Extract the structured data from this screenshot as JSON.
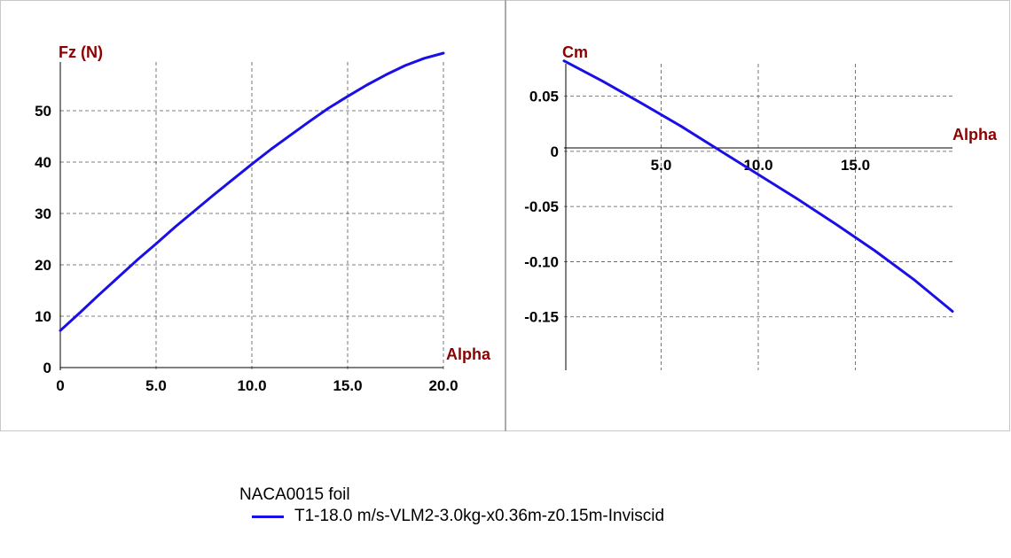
{
  "colors": {
    "series": "#1a0fe6",
    "axis_title": "#8b0000",
    "grid": "#555555",
    "frame": "#c8c8c8"
  },
  "legend": {
    "title": "NACA0015 foil",
    "series_label": "T1-18.0 m/s-VLM2-3.0kg-x0.36m-z0.15m-Inviscid"
  },
  "chart_data": [
    {
      "type": "line",
      "title": "",
      "xlabel": "Alpha",
      "ylabel": "Fz (N)",
      "xlim": [
        0,
        20
      ],
      "ylim": [
        0,
        60
      ],
      "x_ticks": [
        0,
        5,
        10,
        15,
        20
      ],
      "x_tick_labels": [
        "0",
        "5.0",
        "10.0",
        "15.0",
        "20.0"
      ],
      "y_ticks": [
        0,
        10,
        20,
        30,
        40,
        50
      ],
      "y_tick_labels": [
        "0",
        "10",
        "20",
        "30",
        "40",
        "50"
      ],
      "grid": true,
      "series": [
        {
          "name": "T1-18.0 m/s-VLM2-3.0kg-x0.36m-z0.15m-Inviscid",
          "x": [
            0,
            1,
            2,
            3,
            4,
            5,
            6,
            7,
            8,
            9,
            10,
            11,
            12,
            13,
            14,
            15,
            16,
            17,
            18,
            19,
            20
          ],
          "y": [
            7.2,
            10.6,
            14.1,
            17.5,
            20.9,
            24.1,
            27.4,
            30.5,
            33.6,
            36.6,
            39.6,
            42.5,
            45.2,
            47.9,
            50.5,
            52.8,
            55.0,
            57.0,
            58.8,
            60.2,
            61.2
          ]
        }
      ]
    },
    {
      "type": "line",
      "title": "",
      "xlabel": "Alpha",
      "ylabel": "Cm",
      "xlim": [
        0,
        20
      ],
      "ylim": [
        -0.2,
        0.085
      ],
      "x_ticks": [
        5,
        10,
        15
      ],
      "x_tick_labels": [
        "5.0",
        "10.0",
        "15.0"
      ],
      "y_ticks": [
        0.05,
        0,
        -0.05,
        -0.1,
        -0.15
      ],
      "y_tick_labels": [
        "0.05",
        "0",
        "-0.05",
        "-0.10",
        "-0.15"
      ],
      "grid": true,
      "series": [
        {
          "name": "T1-18.0 m/s-VLM2-3.0kg-x0.36m-z0.15m-Inviscid",
          "x": [
            0,
            2,
            4,
            6,
            8,
            10,
            12,
            14,
            16,
            18,
            20
          ],
          "y": [
            0.082,
            0.0635,
            0.0435,
            0.023,
            0.001,
            -0.021,
            -0.043,
            -0.066,
            -0.09,
            -0.116,
            -0.145
          ]
        }
      ]
    }
  ]
}
